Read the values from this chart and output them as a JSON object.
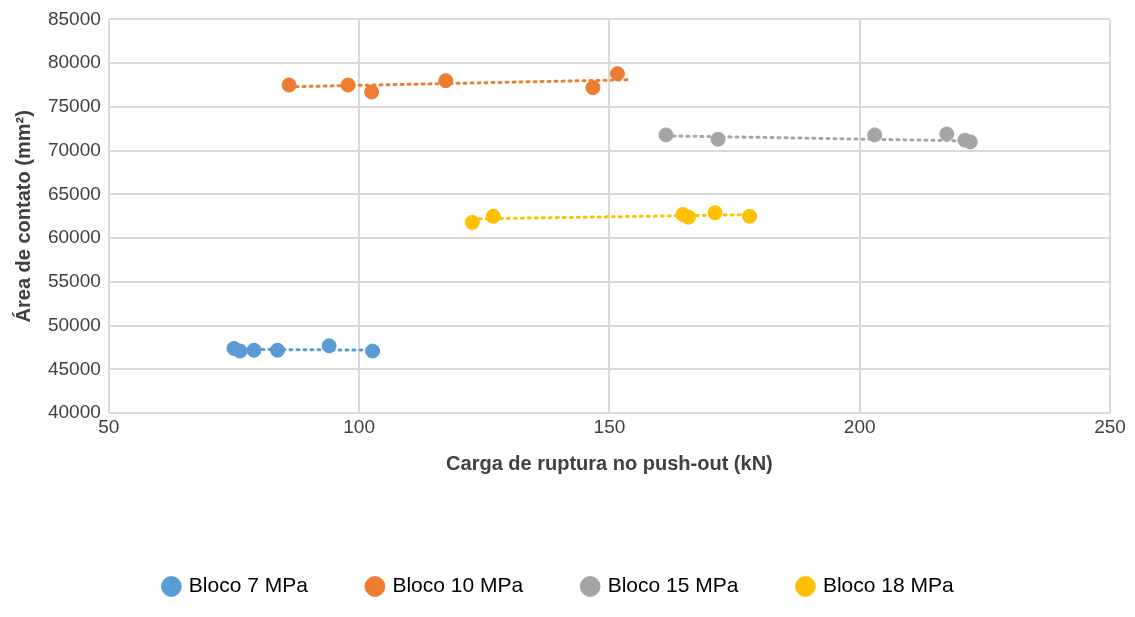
{
  "chart_data": {
    "type": "scatter",
    "xlabel": "Carga de ruptura no push-out (kN)",
    "ylabel": "Área de contato (mm²)",
    "xlim": [
      50,
      250
    ],
    "xticks": [
      50,
      100,
      150,
      200,
      250
    ],
    "ylim": [
      40000,
      85000
    ],
    "yticks": [
      40000,
      45000,
      50000,
      55000,
      60000,
      65000,
      70000,
      75000,
      80000,
      85000
    ],
    "grid": true,
    "legend": "bottom",
    "marker": "circle",
    "series": [
      {
        "name": "Bloco 7 MPa",
        "color": "#5b9bd5",
        "x": [
          75.0,
          76.2,
          79.0,
          83.7,
          94.0,
          102.7
        ],
        "values": [
          47400,
          47100,
          47200,
          47200,
          47700,
          47100
        ]
      },
      {
        "name": "Bloco 10 MPa",
        "color": "#ed7d31",
        "x": [
          86.0,
          97.8,
          102.5,
          117.3,
          146.7,
          151.6
        ],
        "values": [
          77500,
          77500,
          76700,
          78000,
          77200,
          78800
        ]
      },
      {
        "name": "Bloco 15 MPa",
        "color": "#a5a5a5",
        "x": [
          161.3,
          171.7,
          203.0,
          217.4,
          221.0,
          222.1
        ],
        "values": [
          71800,
          71300,
          71800,
          71900,
          71200,
          71000
        ]
      },
      {
        "name": "Bloco 18 MPa",
        "color": "#ffc000",
        "x": [
          122.6,
          126.8,
          164.7,
          165.8,
          171.1,
          178.0
        ],
        "values": [
          61800,
          62500,
          62700,
          62400,
          62900,
          62500
        ]
      },
      {
        "type": "line",
        "color": "#5b9bd5",
        "line_style": "dotted",
        "marker": "none",
        "x": [
          75.0,
          104.0
        ],
        "values": [
          47300,
          47200
        ]
      },
      {
        "type": "line",
        "color": "#ed7d31",
        "line_style": "dotted",
        "marker": "none",
        "x": [
          86.0,
          153.7
        ],
        "values": [
          77300,
          78100
        ]
      },
      {
        "type": "line",
        "color": "#a5a5a5",
        "line_style": "dotted",
        "marker": "none",
        "x": [
          161.3,
          222.9
        ],
        "values": [
          71700,
          71100
        ]
      },
      {
        "type": "line",
        "color": "#ffc000",
        "line_style": "dotted",
        "marker": "none",
        "x": [
          122.6,
          179.7
        ],
        "values": [
          62200,
          62700
        ]
      }
    ]
  }
}
